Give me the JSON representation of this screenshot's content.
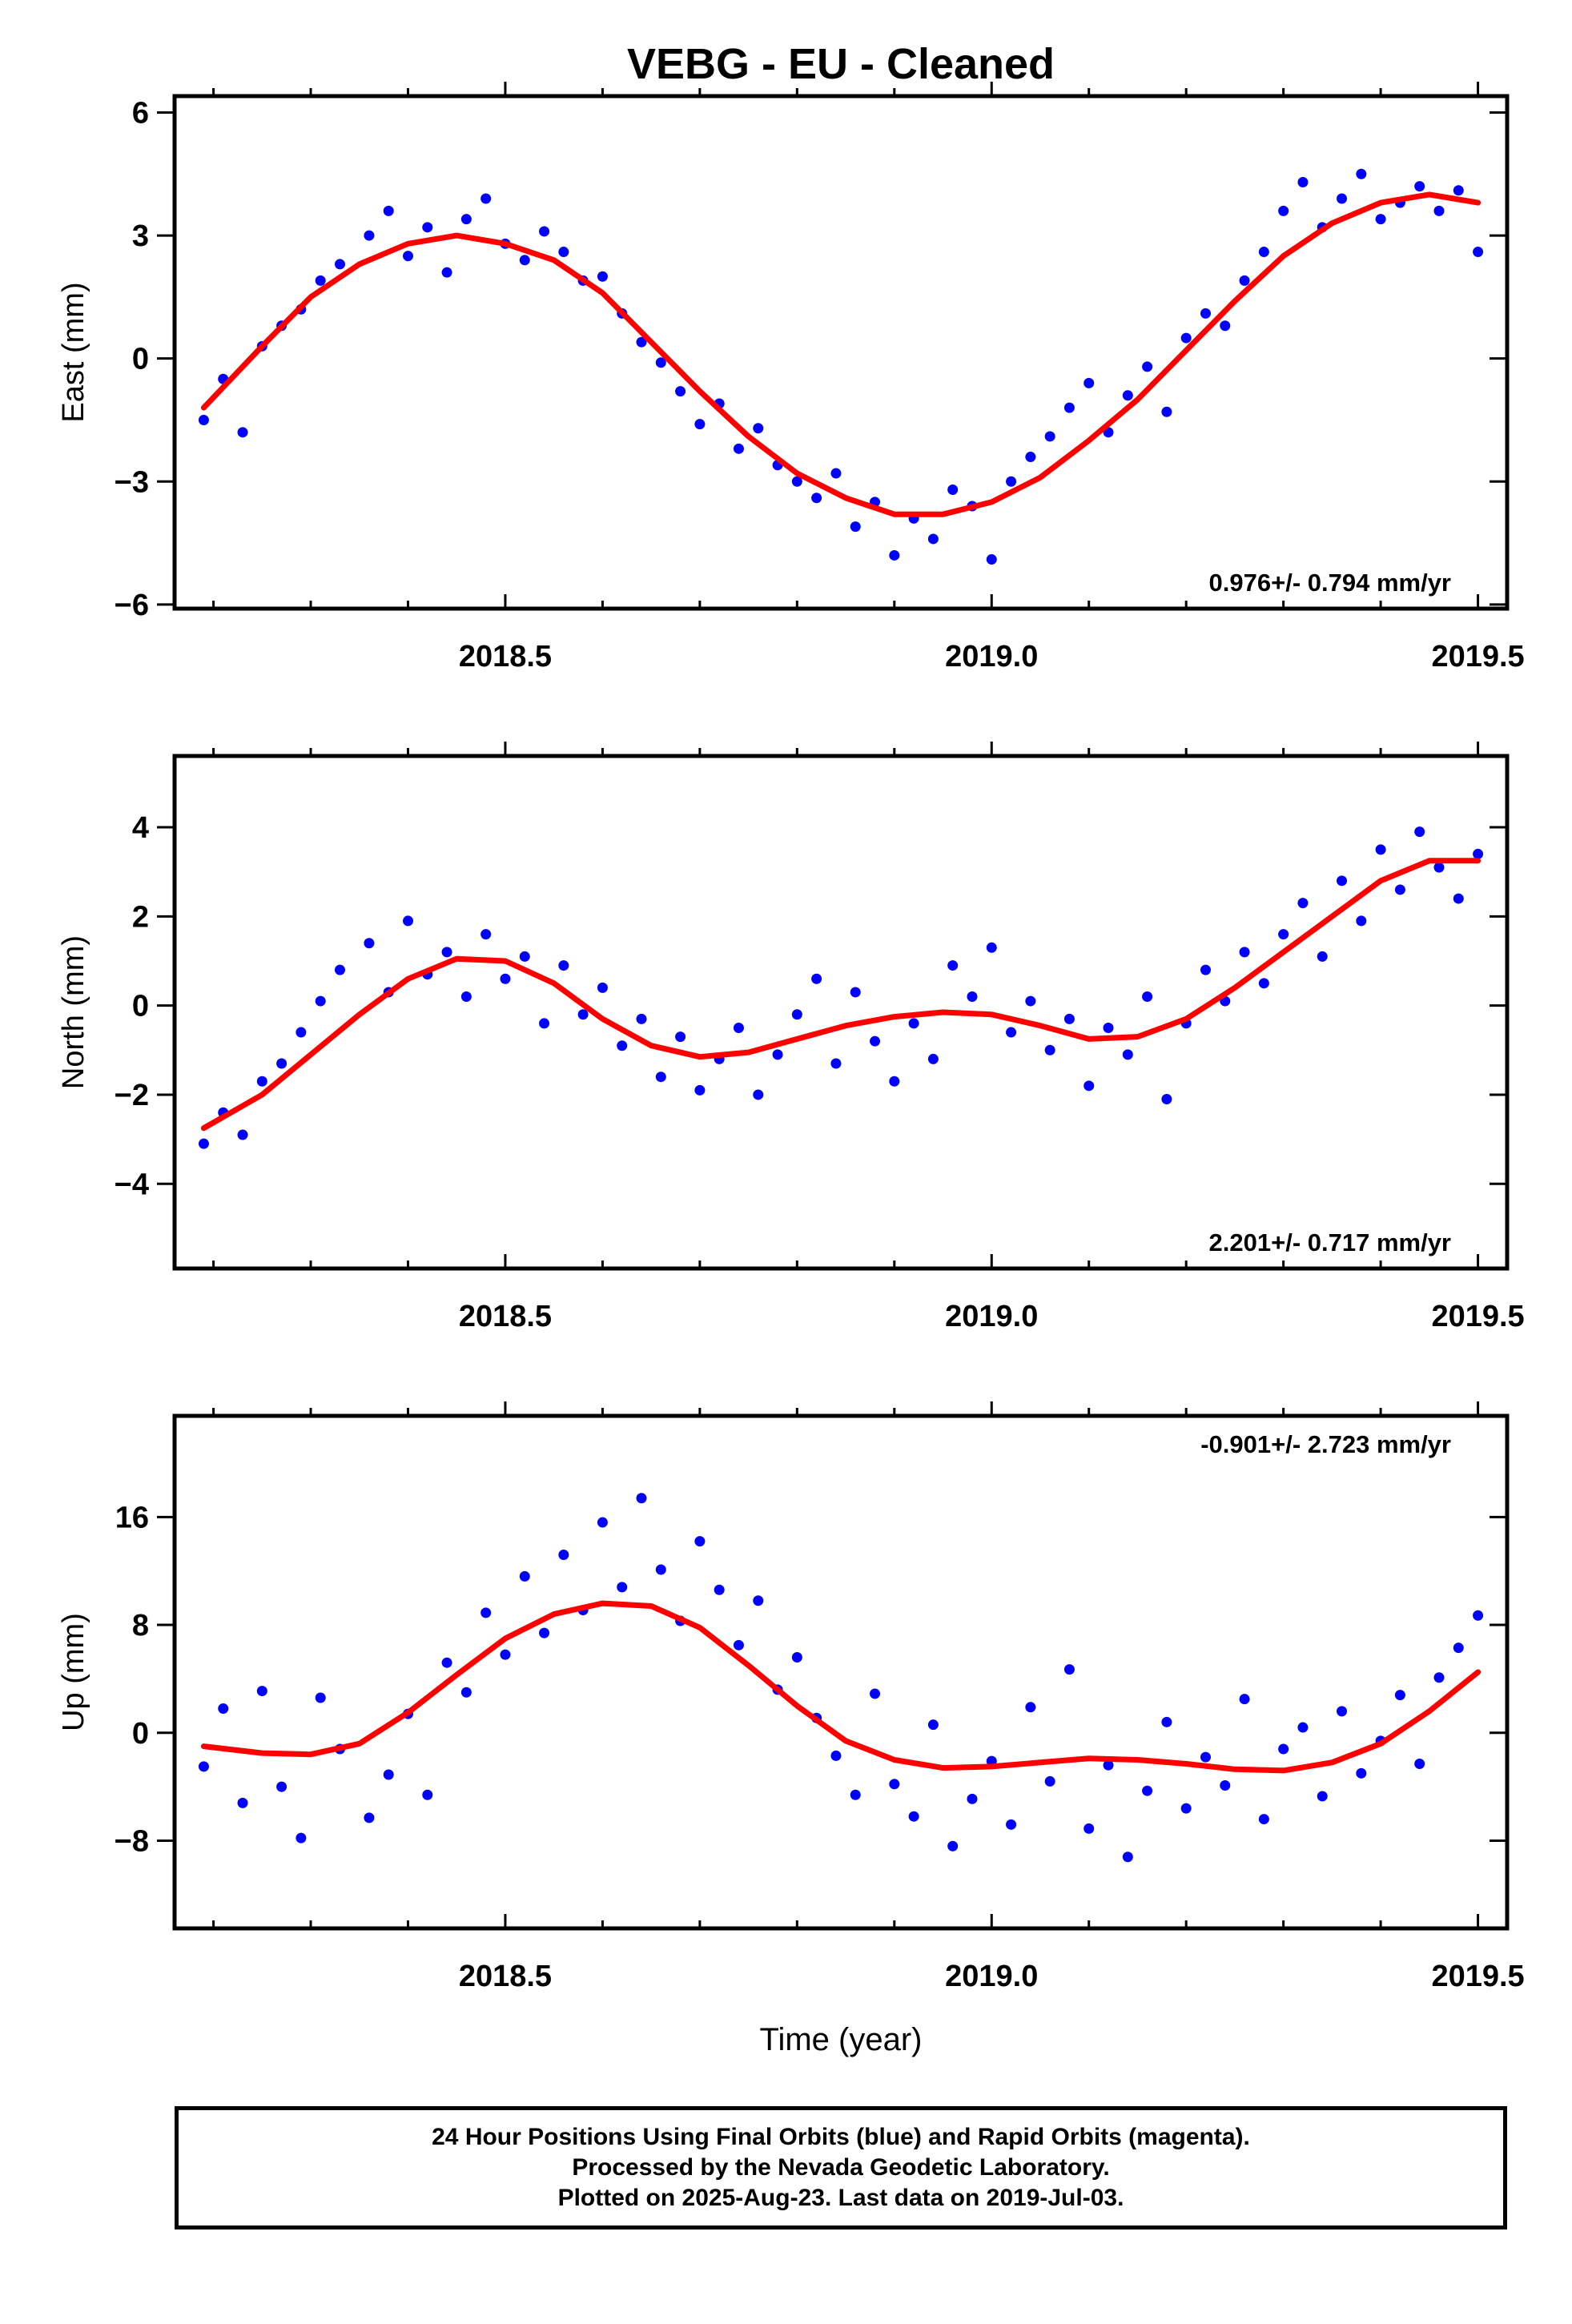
{
  "title": "VEBG  - EU - Cleaned",
  "colors": {
    "points": "#0000ff",
    "fit": "#ff0000",
    "axis": "#000000"
  },
  "footer": {
    "line1": "24 Hour Positions Using Final Orbits (blue) and Rapid Orbits (magenta).",
    "line2": "Processed by the Nevada Geodetic Laboratory.",
    "line3": "Plotted on 2025-Aug-23. Last data on 2019-Jul-03."
  },
  "chart_data": [
    {
      "type": "scatter",
      "name": "east",
      "ylabel": "East (mm)",
      "xlabel": "",
      "xlim": [
        2018.16,
        2019.53
      ],
      "ylim": [
        -6.1,
        6.4
      ],
      "xticks": [
        "2018.5",
        "2019.0",
        "2019.5"
      ],
      "yticks": [
        "6",
        "3",
        "0",
        "−3",
        "−6"
      ],
      "rate_label": "0.976+/- 0.794 mm/yr",
      "rate_position": "bottom-right",
      "series": [
        {
          "kind": "points",
          "x": [
            2018.19,
            2018.21,
            2018.23,
            2018.25,
            2018.27,
            2018.29,
            2018.31,
            2018.33,
            2018.36,
            2018.38,
            2018.4,
            2018.42,
            2018.44,
            2018.46,
            2018.48,
            2018.5,
            2018.52,
            2018.54,
            2018.56,
            2018.58,
            2018.6,
            2018.62,
            2018.64,
            2018.66,
            2018.68,
            2018.7,
            2018.72,
            2018.74,
            2018.76,
            2018.78,
            2018.8,
            2018.82,
            2018.84,
            2018.86,
            2018.88,
            2018.9,
            2018.92,
            2018.94,
            2018.96,
            2018.98,
            2019.0,
            2019.02,
            2019.04,
            2019.06,
            2019.08,
            2019.1,
            2019.12,
            2019.14,
            2019.16,
            2019.18,
            2019.2,
            2019.22,
            2019.24,
            2019.26,
            2019.28,
            2019.3,
            2019.32,
            2019.34,
            2019.36,
            2019.38,
            2019.4,
            2019.42,
            2019.44,
            2019.46,
            2019.48,
            2019.5
          ],
          "y": [
            -1.5,
            -0.5,
            -1.8,
            0.3,
            0.8,
            1.2,
            1.9,
            2.3,
            3.0,
            3.6,
            2.5,
            3.2,
            2.1,
            3.4,
            3.9,
            2.8,
            2.4,
            3.1,
            2.6,
            1.9,
            2.0,
            1.1,
            0.4,
            -0.1,
            -0.8,
            -1.6,
            -1.1,
            -2.2,
            -1.7,
            -2.6,
            -3.0,
            -3.4,
            -2.8,
            -4.1,
            -3.5,
            -4.8,
            -3.9,
            -4.4,
            -3.2,
            -3.6,
            -4.9,
            -3.0,
            -2.4,
            -1.9,
            -1.2,
            -0.6,
            -1.8,
            -0.9,
            -0.2,
            -1.3,
            0.5,
            1.1,
            0.8,
            1.9,
            2.6,
            3.6,
            4.3,
            3.2,
            3.9,
            4.5,
            3.4,
            3.8,
            4.2,
            3.6,
            4.1,
            2.6
          ]
        },
        {
          "kind": "fit",
          "x": [
            2018.19,
            2018.25,
            2018.3,
            2018.35,
            2018.4,
            2018.45,
            2018.5,
            2018.55,
            2018.6,
            2018.65,
            2018.7,
            2018.75,
            2018.8,
            2018.85,
            2018.9,
            2018.95,
            2019.0,
            2019.05,
            2019.1,
            2019.15,
            2019.2,
            2019.25,
            2019.3,
            2019.35,
            2019.4,
            2019.45,
            2019.5
          ],
          "y": [
            -1.2,
            0.3,
            1.5,
            2.3,
            2.8,
            3.0,
            2.8,
            2.4,
            1.6,
            0.4,
            -0.8,
            -1.9,
            -2.8,
            -3.4,
            -3.8,
            -3.8,
            -3.5,
            -2.9,
            -2.0,
            -1.0,
            0.2,
            1.4,
            2.5,
            3.3,
            3.8,
            4.0,
            3.8
          ]
        }
      ]
    },
    {
      "type": "scatter",
      "name": "north",
      "ylabel": "North (mm)",
      "xlabel": "",
      "xlim": [
        2018.16,
        2019.53
      ],
      "ylim": [
        -5.9,
        5.6
      ],
      "xticks": [
        "2018.5",
        "2019.0",
        "2019.5"
      ],
      "yticks": [
        "4",
        "2",
        "0",
        "−2",
        "−4"
      ],
      "rate_label": "2.201+/- 0.717 mm/yr",
      "rate_position": "bottom-right",
      "series": [
        {
          "kind": "points",
          "x": [
            2018.19,
            2018.21,
            2018.23,
            2018.25,
            2018.27,
            2018.29,
            2018.31,
            2018.33,
            2018.36,
            2018.38,
            2018.4,
            2018.42,
            2018.44,
            2018.46,
            2018.48,
            2018.5,
            2018.52,
            2018.54,
            2018.56,
            2018.58,
            2018.6,
            2018.62,
            2018.64,
            2018.66,
            2018.68,
            2018.7,
            2018.72,
            2018.74,
            2018.76,
            2018.78,
            2018.8,
            2018.82,
            2018.84,
            2018.86,
            2018.88,
            2018.9,
            2018.92,
            2018.94,
            2018.96,
            2018.98,
            2019.0,
            2019.02,
            2019.04,
            2019.06,
            2019.08,
            2019.1,
            2019.12,
            2019.14,
            2019.16,
            2019.18,
            2019.2,
            2019.22,
            2019.24,
            2019.26,
            2019.28,
            2019.3,
            2019.32,
            2019.34,
            2019.36,
            2019.38,
            2019.4,
            2019.42,
            2019.44,
            2019.46,
            2019.48,
            2019.5
          ],
          "y": [
            -3.1,
            -2.4,
            -2.9,
            -1.7,
            -1.3,
            -0.6,
            0.1,
            0.8,
            1.4,
            0.3,
            1.9,
            0.7,
            1.2,
            0.2,
            1.6,
            0.6,
            1.1,
            -0.4,
            0.9,
            -0.2,
            0.4,
            -0.9,
            -0.3,
            -1.6,
            -0.7,
            -1.9,
            -1.2,
            -0.5,
            -2.0,
            -1.1,
            -0.2,
            0.6,
            -1.3,
            0.3,
            -0.8,
            -1.7,
            -0.4,
            -1.2,
            0.9,
            0.2,
            1.3,
            -0.6,
            0.1,
            -1.0,
            -0.3,
            -1.8,
            -0.5,
            -1.1,
            0.2,
            -2.1,
            -0.4,
            0.8,
            0.1,
            1.2,
            0.5,
            1.6,
            2.3,
            1.1,
            2.8,
            1.9,
            3.5,
            2.6,
            3.9,
            3.1,
            2.4,
            3.4
          ]
        },
        {
          "kind": "fit",
          "x": [
            2018.19,
            2018.25,
            2018.3,
            2018.35,
            2018.4,
            2018.45,
            2018.5,
            2018.55,
            2018.6,
            2018.65,
            2018.7,
            2018.75,
            2018.8,
            2018.85,
            2018.9,
            2018.95,
            2019.0,
            2019.05,
            2019.1,
            2019.15,
            2019.2,
            2019.25,
            2019.3,
            2019.35,
            2019.4,
            2019.45,
            2019.5
          ],
          "y": [
            -2.75,
            -2.0,
            -1.1,
            -0.2,
            0.6,
            1.05,
            1.0,
            0.5,
            -0.3,
            -0.9,
            -1.15,
            -1.05,
            -0.75,
            -0.45,
            -0.25,
            -0.15,
            -0.2,
            -0.45,
            -0.75,
            -0.7,
            -0.3,
            0.4,
            1.2,
            2.0,
            2.8,
            3.25,
            3.25
          ]
        }
      ]
    },
    {
      "type": "scatter",
      "name": "up",
      "ylabel": "Up (mm)",
      "xlabel": "Time (year)",
      "xlim": [
        2018.16,
        2019.53
      ],
      "ylim": [
        -14.5,
        23.5
      ],
      "xticks": [
        "2018.5",
        "2019.0",
        "2019.5"
      ],
      "yticks": [
        "16",
        "8",
        "0",
        "−8"
      ],
      "rate_label": "-0.901+/- 2.723 mm/yr",
      "rate_position": "top-right",
      "series": [
        {
          "kind": "points",
          "x": [
            2018.19,
            2018.21,
            2018.23,
            2018.25,
            2018.27,
            2018.29,
            2018.31,
            2018.33,
            2018.36,
            2018.38,
            2018.4,
            2018.42,
            2018.44,
            2018.46,
            2018.48,
            2018.5,
            2018.52,
            2018.54,
            2018.56,
            2018.58,
            2018.6,
            2018.62,
            2018.64,
            2018.66,
            2018.68,
            2018.7,
            2018.72,
            2018.74,
            2018.76,
            2018.78,
            2018.8,
            2018.82,
            2018.84,
            2018.86,
            2018.88,
            2018.9,
            2018.92,
            2018.94,
            2018.96,
            2018.98,
            2019.0,
            2019.02,
            2019.04,
            2019.06,
            2019.08,
            2019.1,
            2019.12,
            2019.14,
            2019.16,
            2019.18,
            2019.2,
            2019.22,
            2019.24,
            2019.26,
            2019.28,
            2019.3,
            2019.32,
            2019.34,
            2019.36,
            2019.38,
            2019.4,
            2019.42,
            2019.44,
            2019.46,
            2019.48,
            2019.5
          ],
          "y": [
            -2.5,
            1.8,
            -5.2,
            3.1,
            -4.0,
            -7.8,
            2.6,
            -1.2,
            -6.3,
            -3.1,
            1.4,
            -4.6,
            5.2,
            3.0,
            8.9,
            5.8,
            11.6,
            7.4,
            13.2,
            9.1,
            15.6,
            10.8,
            17.4,
            12.1,
            8.3,
            14.2,
            10.6,
            6.5,
            9.8,
            3.2,
            5.6,
            1.1,
            -1.7,
            -4.6,
            2.9,
            -3.8,
            -6.2,
            0.6,
            -8.4,
            -4.9,
            -2.1,
            -6.8,
            1.9,
            -3.6,
            4.7,
            -7.1,
            -2.4,
            -9.2,
            -4.3,
            0.8,
            -5.6,
            -1.8,
            -3.9,
            2.5,
            -6.4,
            -1.2,
            0.4,
            -4.7,
            1.6,
            -3.0,
            -0.6,
            2.8,
            -2.3,
            4.1,
            6.3,
            8.7
          ]
        },
        {
          "kind": "fit",
          "x": [
            2018.19,
            2018.25,
            2018.3,
            2018.35,
            2018.4,
            2018.45,
            2018.5,
            2018.55,
            2018.6,
            2018.65,
            2018.7,
            2018.75,
            2018.8,
            2018.85,
            2018.9,
            2018.95,
            2019.0,
            2019.05,
            2019.1,
            2019.15,
            2019.2,
            2019.25,
            2019.3,
            2019.35,
            2019.4,
            2019.45,
            2019.5
          ],
          "y": [
            -1.0,
            -1.5,
            -1.6,
            -0.8,
            1.5,
            4.3,
            7.0,
            8.8,
            9.6,
            9.4,
            7.8,
            5.0,
            2.0,
            -0.6,
            -2.0,
            -2.6,
            -2.5,
            -2.2,
            -1.9,
            -2.0,
            -2.3,
            -2.7,
            -2.8,
            -2.2,
            -0.8,
            1.6,
            4.5
          ]
        }
      ]
    }
  ]
}
